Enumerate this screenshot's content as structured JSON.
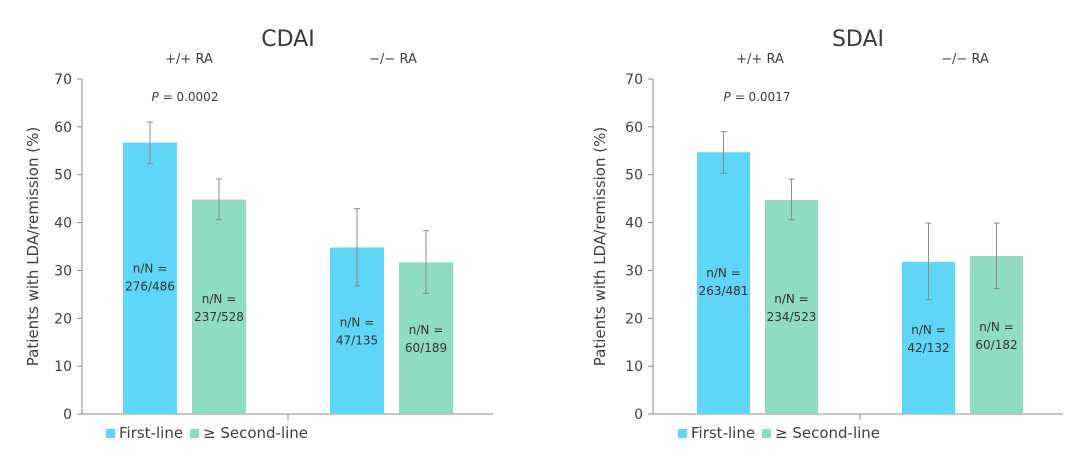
{
  "colors": {
    "first_line": "#5fd6f7",
    "second_line": "#8fdcc2",
    "axis": "#8c8c8c",
    "text": "#404040",
    "error_bar": "#8c8c8c"
  },
  "chart_data": [
    {
      "type": "bar",
      "title": "CDAI",
      "ylabel": "Patients with LDA/remission (%)",
      "ylim": [
        0,
        70
      ],
      "yticks": [
        0,
        10,
        20,
        30,
        40,
        50,
        60,
        70
      ],
      "grid": false,
      "legend_position": "bottom",
      "groups": [
        {
          "label": "+/+ RA",
          "p_value_prefix": "P",
          "p_value_text": " = 0.0002"
        },
        {
          "label": "−/− RA",
          "p_value_prefix": "",
          "p_value_text": ""
        }
      ],
      "series": [
        {
          "name": "First-line",
          "values": [
            56.7,
            34.8
          ],
          "error_low": [
            52.3,
            26.8
          ],
          "error_high": [
            61.0,
            42.9
          ],
          "n_labels": [
            [
              "n/N =",
              "276/486"
            ],
            [
              "n/N =",
              "47/135"
            ]
          ]
        },
        {
          "name": "≥ Second-line",
          "values": [
            44.8,
            31.7
          ],
          "error_low": [
            40.6,
            25.2
          ],
          "error_high": [
            49.1,
            38.3
          ],
          "n_labels": [
            [
              "n/N =",
              "237/528"
            ],
            [
              "n/N =",
              "60/189"
            ]
          ]
        }
      ]
    },
    {
      "type": "bar",
      "title": "SDAI",
      "ylabel": "Patients with LDA/remission (%)",
      "ylim": [
        0,
        70
      ],
      "yticks": [
        0,
        10,
        20,
        30,
        40,
        50,
        60,
        70
      ],
      "grid": false,
      "legend_position": "bottom",
      "groups": [
        {
          "label": "+/+ RA",
          "p_value_prefix": "P",
          "p_value_text": " = 0.0017"
        },
        {
          "label": "−/− RA",
          "p_value_prefix": "",
          "p_value_text": ""
        }
      ],
      "series": [
        {
          "name": "First-line",
          "values": [
            54.7,
            31.8
          ],
          "error_low": [
            50.3,
            23.9
          ],
          "error_high": [
            59.0,
            39.9
          ],
          "n_labels": [
            [
              "n/N =",
              "263/481"
            ],
            [
              "n/N =",
              "42/132"
            ]
          ]
        },
        {
          "name": "≥ Second-line",
          "values": [
            44.7,
            33.0
          ],
          "error_low": [
            40.6,
            26.2
          ],
          "error_high": [
            49.1,
            39.9
          ],
          "n_labels": [
            [
              "n/N =",
              "234/523"
            ],
            [
              "n/N =",
              "60/182"
            ]
          ]
        }
      ]
    }
  ]
}
